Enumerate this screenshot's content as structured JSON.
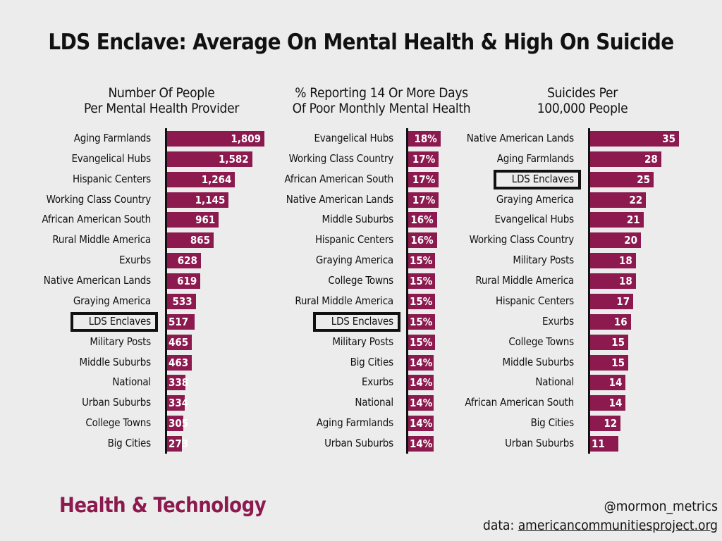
{
  "title": "LDS Enclave: Average On Mental Health & High On Suicide",
  "highlight": "LDS Enclaves",
  "colors": {
    "bar": "#8c1a4f",
    "brand": "#8c1a4f"
  },
  "footer": {
    "brand": "Health & Technology",
    "handle": "@mormon_metrics",
    "data_prefix": "data: ",
    "source": "americancommunitiesproject.org"
  },
  "chart_data": [
    {
      "type": "bar",
      "orientation": "horizontal",
      "title_line1": "Number Of People",
      "title_line2": "Per Mental Health Provider",
      "suffix": "",
      "xlim": [
        0,
        1809
      ],
      "categories": [
        "Aging Farmlands",
        "Evangelical Hubs",
        "Hispanic Centers",
        "Working Class Country",
        "African American South",
        "Rural Middle America",
        "Exurbs",
        "Native American Lands",
        "Graying America",
        "LDS Enclaves",
        "Military Posts",
        "Middle Suburbs",
        "National",
        "Urban Suburbs",
        "College Towns",
        "Big Cities"
      ],
      "values": [
        1809,
        1582,
        1264,
        1145,
        961,
        865,
        628,
        619,
        533,
        517,
        465,
        463,
        338,
        334,
        305,
        273
      ]
    },
    {
      "type": "bar",
      "orientation": "horizontal",
      "title_line1": "% Reporting 14 Or More Days",
      "title_line2": "Of Poor Monthly Mental Health",
      "suffix": "%",
      "xlim": [
        0,
        70
      ],
      "categories": [
        "Evangelical Hubs",
        "Working Class Country",
        "African American South",
        "Native American Lands",
        "Middle Suburbs",
        "Hispanic Centers",
        "Graying America",
        "College Towns",
        "Rural Middle America",
        "LDS Enclaves",
        "Military Posts",
        "Big Cities",
        "Exurbs",
        "National",
        "Aging Farmlands",
        "Urban Suburbs"
      ],
      "values": [
        18,
        17,
        17,
        17,
        16,
        16,
        15,
        15,
        15,
        15,
        15,
        14,
        14,
        14,
        14,
        14
      ]
    },
    {
      "type": "bar",
      "orientation": "horizontal",
      "title_line1": "Suicides Per",
      "title_line2": "100,000 People",
      "suffix": "",
      "xlim": [
        0,
        35
      ],
      "categories": [
        "Native American Lands",
        "Aging Farmlands",
        "LDS Enclaves",
        "Graying America",
        "Evangelical Hubs",
        "Working Class Country",
        "Military Posts",
        "Rural Middle America",
        "Hispanic Centers",
        "Exurbs",
        "College Towns",
        "Middle Suburbs",
        "National",
        "African American South",
        "Big Cities",
        "Urban Suburbs"
      ],
      "values": [
        35,
        28,
        25,
        22,
        21,
        20,
        18,
        18,
        17,
        16,
        15,
        15,
        14,
        14,
        12,
        11
      ]
    }
  ]
}
